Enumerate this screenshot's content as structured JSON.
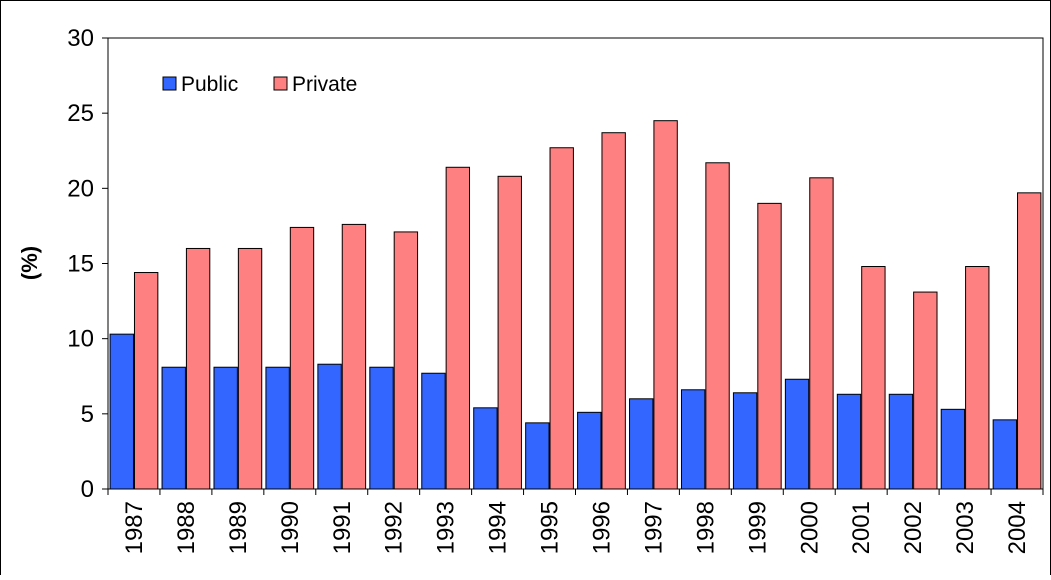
{
  "chart_data": {
    "type": "bar",
    "title": "",
    "xlabel": "",
    "ylabel": "(%)",
    "ylim": [
      0,
      30
    ],
    "yticks": [
      0,
      5,
      10,
      15,
      20,
      25,
      30
    ],
    "grid": false,
    "legend_position": "top-left",
    "categories": [
      "1987",
      "1988",
      "1989",
      "1990",
      "1991",
      "1992",
      "1993",
      "1994",
      "1995",
      "1996",
      "1997",
      "1998",
      "1999",
      "2000",
      "2001",
      "2002",
      "2003",
      "2004"
    ],
    "series": [
      {
        "name": "Public",
        "color": "#3366ff",
        "values": [
          10.3,
          8.1,
          8.1,
          8.1,
          8.3,
          8.1,
          7.7,
          5.4,
          4.4,
          5.1,
          6.0,
          6.6,
          6.4,
          7.3,
          6.3,
          6.3,
          5.3,
          4.6
        ]
      },
      {
        "name": "Private",
        "color": "#ff8080",
        "values": [
          14.4,
          16.0,
          16.0,
          17.4,
          17.6,
          17.1,
          21.4,
          20.8,
          22.7,
          23.7,
          24.5,
          21.7,
          19.0,
          20.7,
          14.8,
          13.1,
          14.8,
          19.7
        ]
      }
    ]
  }
}
